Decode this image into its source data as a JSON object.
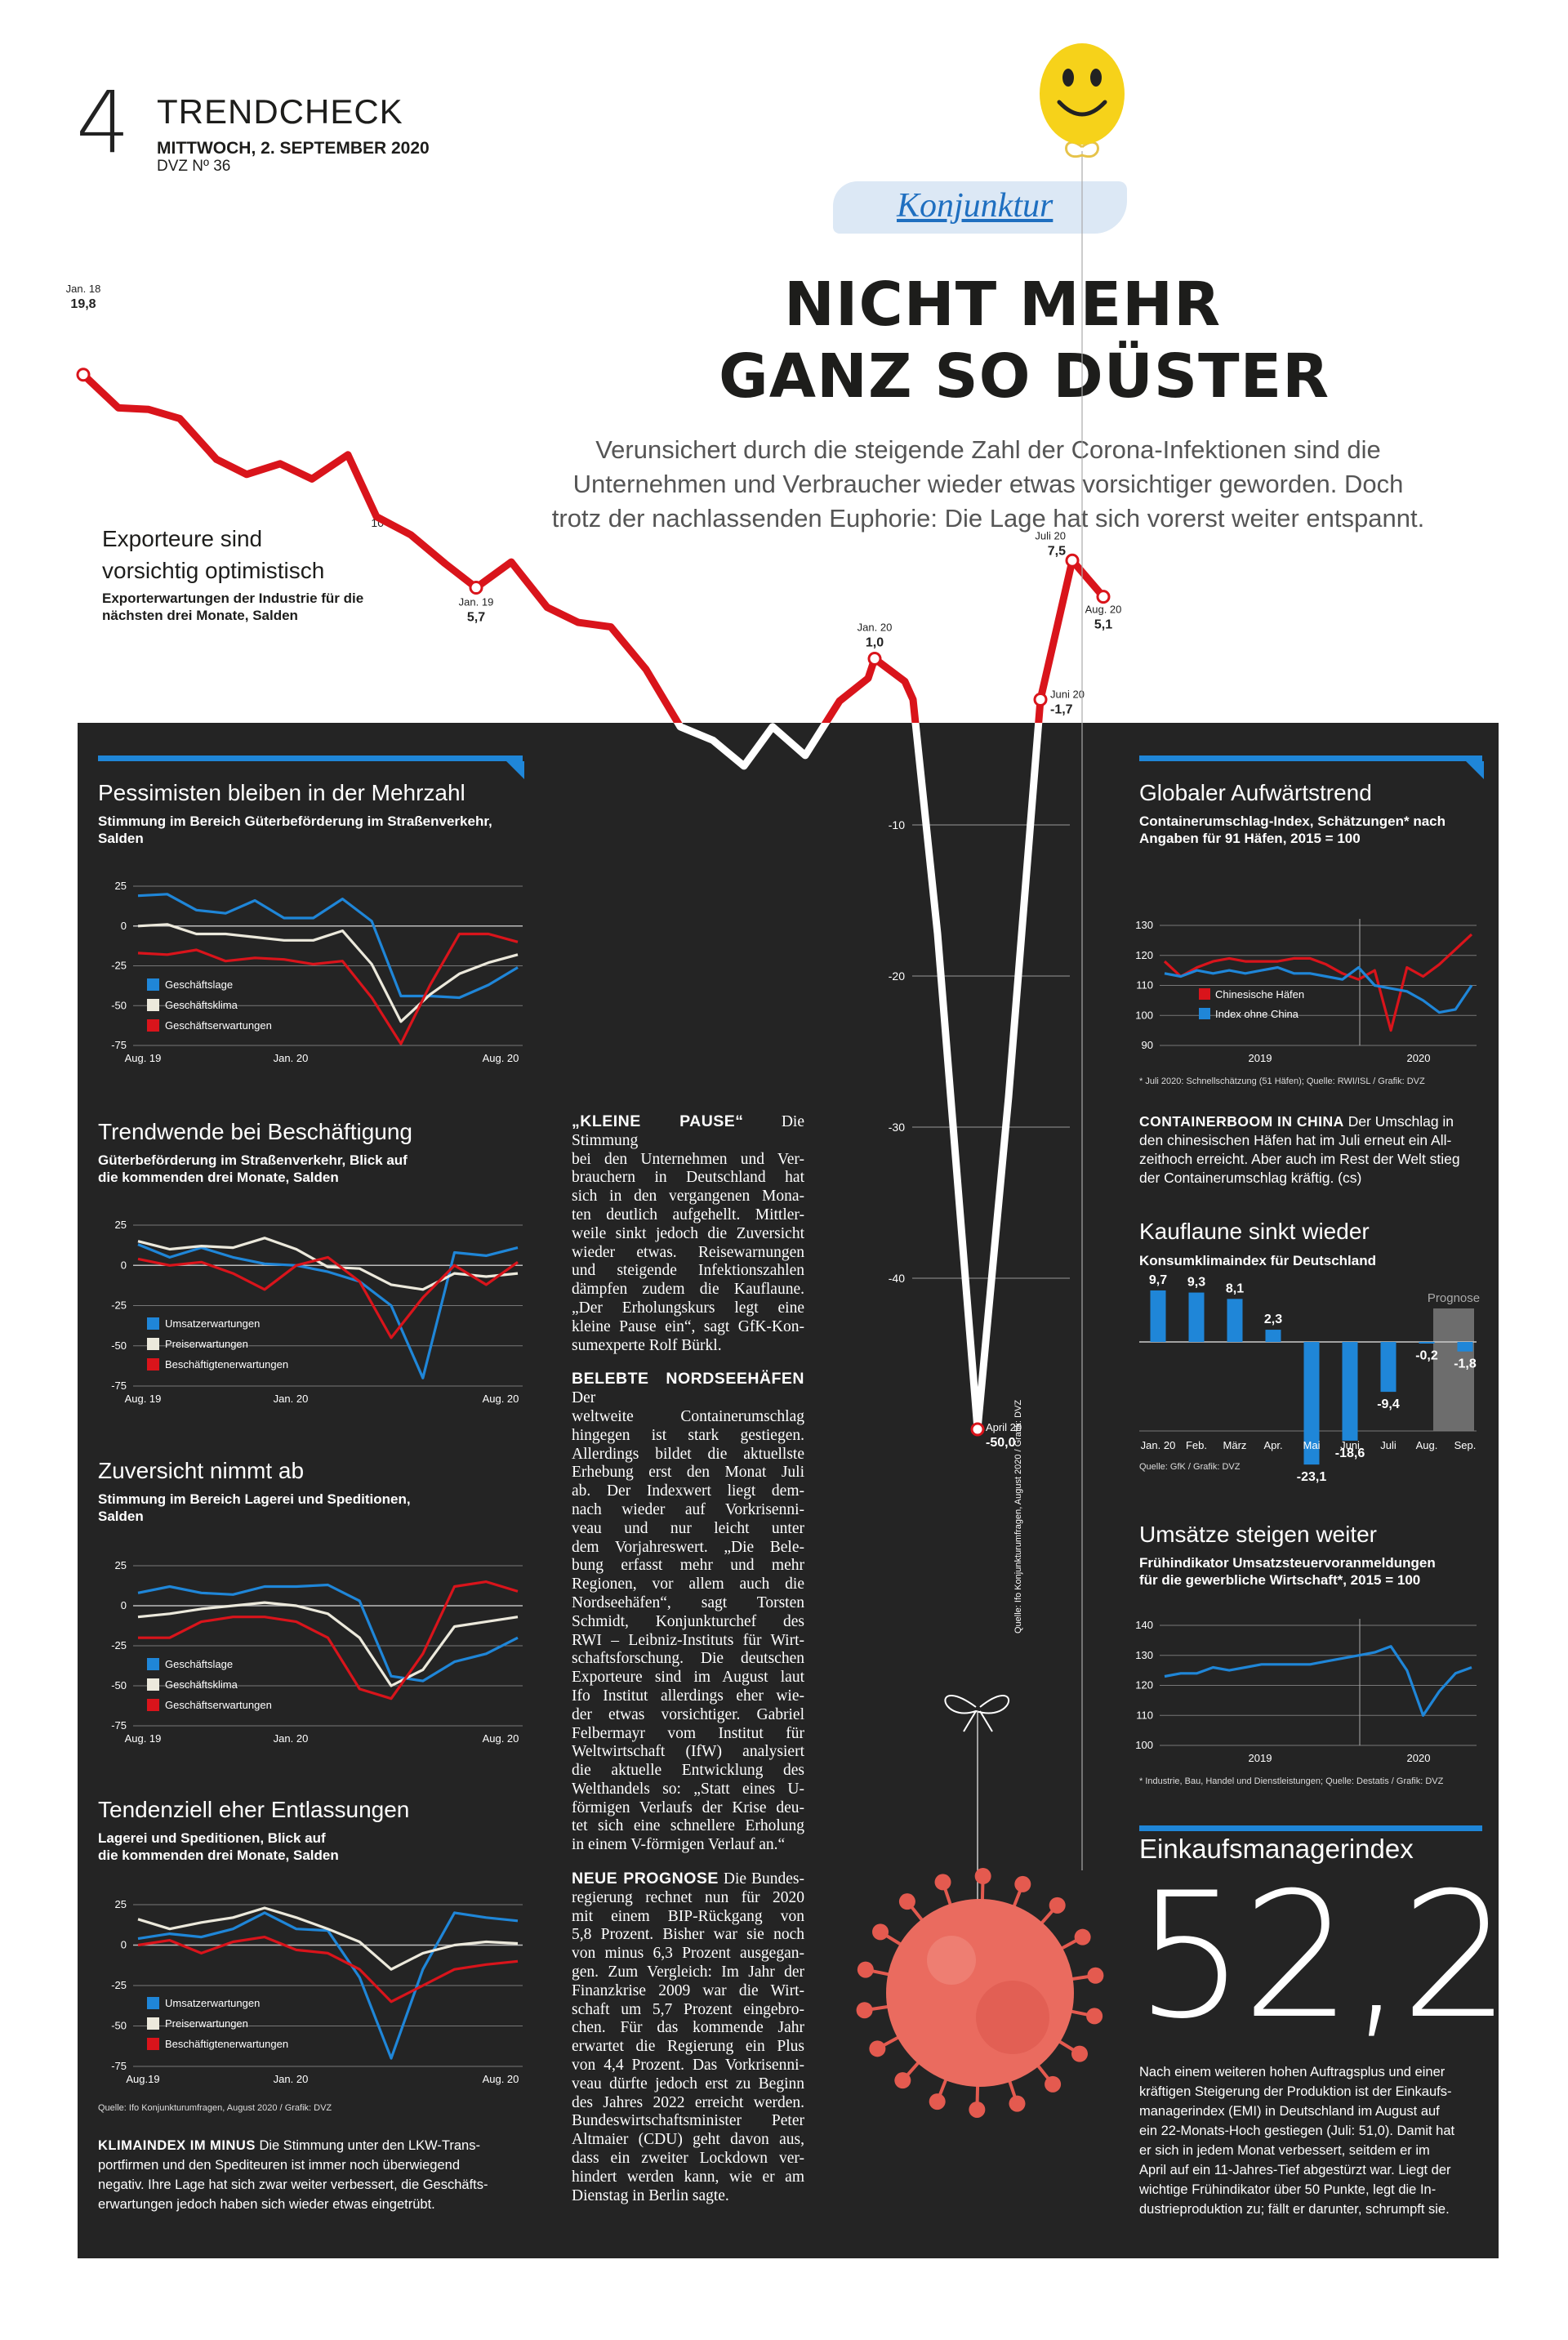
{
  "header": {
    "page_number": "4",
    "section": "TRENDCHECK",
    "date": "MITTWOCH, 2. SEPTEMBER 2020",
    "issue": "DVZ Nº 36"
  },
  "rubric": "Konjunktur",
  "headline": [
    "NICHT MEHR",
    "GANZ SO DÜSTER"
  ],
  "lead": [
    "Verunsichert durch die steigende Zahl der Corona-Infektionen sind die",
    "Unternehmen und Verbraucher wieder etwas vorsichtiger geworden. Doch",
    "trotz der nachlassenden Euphorie: Die Lage hat sich vorerst weiter entspannt."
  ],
  "colors": {
    "red": "#d9141b",
    "blue": "#1f86d8",
    "cream": "#ece9dc",
    "panel": "#242424",
    "gray_bar": "#6d6d6d"
  },
  "icons": [
    "smiley-balloon-icon",
    "coronavirus-icon"
  ],
  "chart_data": [
    {
      "id": "export",
      "type": "line",
      "title": "Exporteure sind vorsichtig optimistisch",
      "subtitle": "Exporterwartungen der Industrie für die nächsten drei Monate, Salden",
      "source": "Quelle: Ifo Konjunkturumfragen, August 2020 / Grafik: DVZ",
      "y_ticks": [
        10,
        -10,
        -20,
        -30,
        -40
      ],
      "values": [
        19.8,
        17.6,
        17.5,
        16.9,
        14.2,
        13.2,
        13.9,
        12.9,
        14.5,
        10.4,
        9.2,
        7.3,
        5.7,
        7.4,
        4.4,
        3.4,
        3.1,
        0.3,
        -3.5,
        -4.4,
        -6.1,
        -3.5,
        -5.4,
        -1.8,
        -0.3,
        1.0,
        -0.5,
        -1.7,
        -17.2,
        -50.0,
        -28.0,
        -1.7,
        7.5,
        5.1
      ],
      "annotations": [
        {
          "index": 0,
          "label": "Jan. 18",
          "value": "19,8"
        },
        {
          "index": 12,
          "label": "Jan. 19",
          "value": "5,7"
        },
        {
          "index": 25,
          "label": "Jan. 20",
          "value": "1,0"
        },
        {
          "index": 29,
          "label": "April 20",
          "value": "-50,0"
        },
        {
          "index": 31,
          "label": "Juni 20",
          "value": "-1,7"
        },
        {
          "index": 32,
          "label": "Juli 20",
          "value": "7,5"
        },
        {
          "index": 33,
          "label": "Aug. 20",
          "value": "5,1"
        }
      ]
    },
    {
      "id": "pessimisten",
      "type": "line",
      "title": "Pessimisten bleiben in der Mehrzahl",
      "subtitle": [
        "Stimmung im Bereich Güterbeförderung im Straßenverkehr,",
        "Salden"
      ],
      "x_labels": [
        "Aug. 19",
        "Jan. 20",
        "Aug. 20"
      ],
      "y_ticks": [
        25,
        0,
        -25,
        -50,
        -75
      ],
      "series": [
        {
          "name": "Geschäftslage",
          "color": "#1f86d8",
          "values": [
            19,
            20,
            10,
            8,
            16,
            5,
            5,
            17,
            3,
            -44,
            -44,
            -45,
            -37,
            -26
          ]
        },
        {
          "name": "Geschäftsklima",
          "color": "#ece9dc",
          "values": [
            0,
            1,
            -5,
            -5,
            -7,
            -9,
            -9,
            -3,
            -24,
            -60,
            -43,
            -30,
            -23,
            -18
          ]
        },
        {
          "name": "Geschäftserwartungen",
          "color": "#d9141b",
          "values": [
            -17,
            -18,
            -15,
            -22,
            -20,
            -21,
            -24,
            -22,
            -45,
            -74,
            -37,
            -5,
            -5,
            -10
          ]
        }
      ]
    },
    {
      "id": "beschaeftigung",
      "type": "line",
      "title": "Trendwende bei Beschäftigung",
      "subtitle": [
        "Güterbeförderung im Straßenverkehr, Blick auf",
        "die kommenden drei Monate, Salden"
      ],
      "x_labels": [
        "Aug. 19",
        "Jan. 20",
        "Aug. 20"
      ],
      "y_ticks": [
        25,
        0,
        -25,
        -50,
        -75
      ],
      "series": [
        {
          "name": "Umsatzerwartungen",
          "color": "#1f86d8",
          "values": [
            13,
            5,
            11,
            5,
            1,
            0,
            -4,
            -10,
            -25,
            -70,
            8,
            6,
            11
          ]
        },
        {
          "name": "Preiserwartungen",
          "color": "#ece9dc",
          "values": [
            15,
            10,
            12,
            11,
            17,
            10,
            -1,
            -2,
            -12,
            -15,
            -5,
            -7,
            -5
          ]
        },
        {
          "name": "Beschäftigtenerwartungen",
          "color": "#d9141b",
          "values": [
            4,
            0,
            2,
            -5,
            -15,
            0,
            5,
            -10,
            -45,
            -20,
            0,
            -12,
            2
          ]
        }
      ]
    },
    {
      "id": "zuversicht",
      "type": "line",
      "title": "Zuversicht nimmt ab",
      "subtitle": [
        "Stimmung im Bereich Lagerei und Speditionen,",
        "Salden"
      ],
      "x_labels": [
        "Aug. 19",
        "Jan. 20",
        "Aug. 20"
      ],
      "y_ticks": [
        25,
        0,
        -25,
        -50,
        -75
      ],
      "series": [
        {
          "name": "Geschäftslage",
          "color": "#1f86d8",
          "values": [
            8,
            12,
            8,
            7,
            12,
            12,
            13,
            3,
            -44,
            -47,
            -35,
            -30,
            -20
          ]
        },
        {
          "name": "Geschäftsklima",
          "color": "#ece9dc",
          "values": [
            -7,
            -5,
            -2,
            0,
            2,
            0,
            -5,
            -20,
            -50,
            -40,
            -13,
            -10,
            -7
          ]
        },
        {
          "name": "Geschäftserwartungen",
          "color": "#d9141b",
          "values": [
            -20,
            -20,
            -10,
            -7,
            -7,
            -10,
            -20,
            -52,
            -58,
            -30,
            12,
            15,
            9
          ]
        }
      ]
    },
    {
      "id": "entlassungen",
      "type": "line",
      "title": "Tendenziell eher Entlassungen",
      "subtitle": [
        "Lagerei und Speditionen, Blick auf",
        "die kommenden drei Monate, Salden"
      ],
      "x_labels": [
        "Aug.19",
        "Jan. 20",
        "Aug. 20"
      ],
      "y_ticks": [
        25,
        0,
        -25,
        -50,
        -75
      ],
      "series": [
        {
          "name": "Umsatzerwartungen",
          "color": "#1f86d8",
          "values": [
            4,
            7,
            5,
            10,
            20,
            10,
            9,
            -20,
            -70,
            -15,
            20,
            17,
            15
          ]
        },
        {
          "name": "Preiserwartungen",
          "color": "#ece9dc",
          "values": [
            16,
            10,
            14,
            17,
            23,
            17,
            10,
            2,
            -15,
            -5,
            0,
            2,
            1
          ]
        },
        {
          "name": "Beschäftigtenerwartungen",
          "color": "#d9141b",
          "values": [
            0,
            3,
            -5,
            2,
            5,
            -3,
            -5,
            -15,
            -35,
            -25,
            -15,
            -12,
            -10
          ]
        }
      ]
    },
    {
      "id": "container",
      "type": "line",
      "title": "Globaler Aufwärtstrend",
      "subtitle": [
        "Containerumschlag-Index, Schätzungen* nach",
        "Angaben für 91 Häfen, 2015 = 100"
      ],
      "x_labels": [
        "2019",
        "2020"
      ],
      "y_ticks": [
        130,
        120,
        110,
        100,
        90
      ],
      "footnote": "* Juli 2020: Schnellschätzung (51 Häfen); Quelle: RWI/ISL / Grafik: DVZ",
      "series": [
        {
          "name": "Chinesische Häfen",
          "color": "#d9141b",
          "values": [
            118,
            113,
            116,
            118,
            119,
            118,
            118,
            118,
            119,
            119,
            117,
            114,
            112,
            115,
            95,
            116,
            113,
            117,
            122,
            127
          ]
        },
        {
          "name": "Index ohne China",
          "color": "#1f86d8",
          "values": [
            114,
            113,
            115,
            114,
            115,
            114,
            115,
            116,
            114,
            114,
            113,
            112,
            116,
            110,
            109,
            108,
            105,
            101,
            102,
            110
          ]
        }
      ]
    },
    {
      "id": "konsum",
      "type": "bar",
      "title": "Kauflaune sinkt wieder",
      "subtitle": "Konsumklimaindex für Deutschland",
      "categories": [
        "Jan. 20",
        "Feb.",
        "März",
        "Apr.",
        "Mai",
        "Juni",
        "Juli",
        "Aug.",
        "Sep."
      ],
      "values": [
        9.7,
        9.3,
        8.1,
        2.3,
        -23.1,
        -18.6,
        -9.4,
        -0.2,
        -1.8
      ],
      "value_labels": [
        "9,7",
        "9,3",
        "8,1",
        "2,3",
        "-23,1",
        "-18,6",
        "-9,4",
        "-0,2",
        "-1,8"
      ],
      "prognose_label": "Prognose",
      "source": "Quelle: GfK / Grafik: DVZ"
    },
    {
      "id": "umsatz",
      "type": "line",
      "title": "Umsätze steigen weiter",
      "subtitle": [
        "Frühindikator Umsatzsteuervoranmeldungen",
        "für die gewerbliche Wirtschaft*, 2015 = 100"
      ],
      "x_labels": [
        "2019",
        "2020"
      ],
      "y_ticks": [
        140,
        130,
        120,
        110,
        100
      ],
      "footnote": "* Industrie, Bau, Handel und Dienstleistungen; Quelle: Destatis / Grafik: DVZ",
      "series": [
        {
          "name": "Umsatz",
          "color": "#1f86d8",
          "values": [
            123,
            124,
            124,
            126,
            125,
            126,
            127,
            127,
            127,
            127,
            128,
            129,
            130,
            131,
            133,
            125,
            110,
            118,
            124,
            126
          ]
        }
      ]
    }
  ],
  "text_blocks": {
    "klimaindex": {
      "head": "KLIMAINDEX IM MINUS",
      "lines": [
        "Die Stimmung unter den LKW-Trans-",
        "portfirmen und den Spediteuren ist immer noch überwiegend",
        "negativ. Ihre Lage hat sich zwar weiter verbessert, die Geschäfts-",
        "erwartungen jedoch haben sich wieder etwas eingetrübt."
      ]
    },
    "col_mid": [
      {
        "head": "„KLEINE PAUSE“",
        "body": [
          "Die Stimmung",
          "bei den Unternehmen und Ver-",
          "brauchern in Deutschland hat",
          "sich in den vergangenen Mona-",
          "ten deutlich aufgehellt. Mittler-",
          "weile sinkt jedoch die Zuversicht",
          "wieder etwas. Reisewarnungen",
          "und steigende Infektionszahlen",
          "dämpfen zudem die Kauflaune.",
          "„Der Erholungskurs legt eine",
          "kleine Pause ein“, sagt GfK-Kon-",
          "sumexperte Rolf Bürkl."
        ]
      },
      {
        "head": "BELEBTE NORDSEEHÄFEN",
        "body": [
          "Der",
          "weltweite Containerumschlag",
          "hingegen ist stark gestiegen.",
          "Allerdings bildet die aktuellste",
          "Erhebung erst den Monat Juli",
          "ab. Der Indexwert liegt dem-",
          "nach wieder auf Vorkrisenni-",
          "veau und nur leicht unter",
          "dem Vorjahreswert. „Die Bele-",
          "bung erfasst mehr und mehr",
          "Regionen, vor allem auch die",
          "Nordseehäfen“, sagt Torsten",
          "Schmidt, Konjunkturchef des",
          "RWI – Leibniz-Instituts für Wirt-",
          "schaftsforschung. Die deutschen",
          "Exporteure sind im August laut",
          "Ifo Institut allerdings eher wie-",
          "der etwas vorsichtiger. Gabriel",
          "Felbermayr vom Institut für",
          "Weltwirtschaft (IfW) analysiert",
          "die aktuelle Entwicklung des",
          "Welthandels so: „Statt eines U-",
          "förmigen Verlaufs der Krise deu-",
          "tet sich eine schnellere Erholung",
          "in einem V-förmigen Verlauf an.“"
        ]
      },
      {
        "head": "NEUE PROGNOSE",
        "body": [
          "Die Bundes-",
          "regierung rechnet nun für 2020",
          "mit einem BIP-Rückgang von",
          "5,8 Prozent. Bisher war sie noch",
          "von minus 6,3 Prozent ausgegan-",
          "gen. Zum Vergleich: Im Jahr der",
          "Finanzkrise 2009 war die Wirt-",
          "schaft um 5,7 Prozent eingebro-",
          "chen. Für das kommende Jahr",
          "erwartet die Regierung ein Plus",
          "von 4,4 Prozent. Das Vorkrisenni-",
          "veau dürfte jedoch erst zu Beginn",
          "des Jahres 2022 erreicht werden.",
          "Bundeswirtschaftsminister Peter",
          "Altmaier (CDU) geht davon aus,",
          "dass ein zweiter Lockdown ver-",
          "hindert werden kann, wie er am",
          "Dienstag in Berlin sagte."
        ]
      }
    ],
    "containerboom": {
      "head": "CONTAINERBOOM IN CHINA",
      "lines": [
        "Der Umschlag in",
        "den chinesischen Häfen hat im Juli erneut ein All-",
        "zeithoch erreicht. Aber auch im Rest der Welt stieg",
        "der Containerumschlag kräftig. (cs)"
      ]
    },
    "emi": {
      "label": "Einkaufsmanagerindex",
      "value": "52,2",
      "lines": [
        "Nach einem weiteren hohen Auftragsplus und einer",
        "kräftigen Steigerung der Produktion ist der Einkaufs-",
        "managerindex (EMI) in Deutschland im August auf",
        "ein 22-Monats-Hoch gestiegen (Juli: 51,0). Damit hat",
        "er sich in jedem Monat verbessert, seitdem er im",
        "April auf ein 11-Jahres-Tief abgestürzt war. Liegt der",
        "wichtige Frühindikator über 50 Punkte, legt die In-",
        "dustrieproduktion zu; fällt er darunter, schrumpft sie."
      ]
    },
    "ifo_source": "Quelle: Ifo Konjunkturumfragen, August 2020 / Grafik: DVZ"
  }
}
